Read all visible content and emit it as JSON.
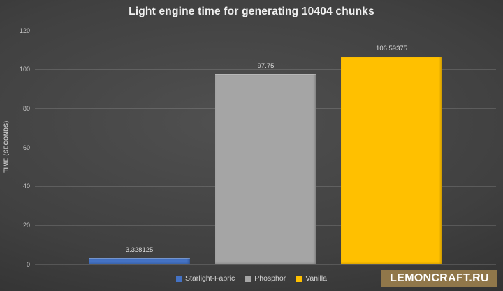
{
  "title": "Light engine time for generating 10404 chunks",
  "y_axis_title": "TIME (SECONDS)",
  "watermark": "LEMONCRAFT.RU",
  "chart_data": {
    "type": "bar",
    "title": "Light engine time for generating 10404 chunks",
    "categories": [
      "Starlight-Fabric",
      "Phosphor",
      "Vanilla"
    ],
    "values": [
      3.328125,
      97.75,
      106.59375
    ],
    "value_labels": [
      "3.328125",
      "97.75",
      "106.59375"
    ],
    "series_colors": [
      "#4472c4",
      "#a5a5a5",
      "#ffc000"
    ],
    "xlabel": "",
    "ylabel": "TIME (SECONDS)",
    "ylim": [
      0,
      120
    ],
    "yticks": [
      0,
      20,
      40,
      60,
      80,
      100,
      120
    ],
    "grid": true,
    "legend_position": "bottom"
  },
  "colors": {
    "background_center": "#505050",
    "background_edge": "#242424",
    "gridline": "rgba(255,255,255,0.14)",
    "title_text": "#efefef",
    "axis_text": "#c9c9c9",
    "value_label_text": "#dcdcdc",
    "watermark_background": "#90774a",
    "watermark_text": "#ffffff"
  }
}
